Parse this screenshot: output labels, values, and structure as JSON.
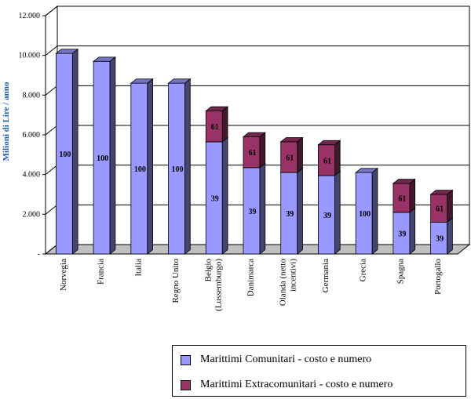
{
  "chart_data": {
    "type": "bar",
    "stacked": true,
    "three_d": true,
    "ylabel": "Milioni di Lire / anno",
    "ylim": [
      0,
      12000
    ],
    "yticks": [
      {
        "value": 0,
        "label": "-"
      },
      {
        "value": 2000,
        "label": "2.000"
      },
      {
        "value": 4000,
        "label": "4.000"
      },
      {
        "value": 6000,
        "label": "6.000"
      },
      {
        "value": 8000,
        "label": "8.000"
      },
      {
        "value": 10000,
        "label": "10.000"
      },
      {
        "value": 12000,
        "label": "12.000"
      }
    ],
    "categories": [
      [
        "Norvegia"
      ],
      [
        "Francia"
      ],
      [
        "Italia"
      ],
      [
        "Regno Unito"
      ],
      [
        "Belgio",
        "(Lussemburgo)"
      ],
      [
        "Danimarca"
      ],
      [
        "Olanda (netto",
        "incentivi)"
      ],
      [
        "Germania"
      ],
      [
        "Grecia"
      ],
      [
        "Spagna"
      ],
      [
        "Portogallo"
      ]
    ],
    "series": [
      {
        "name": "Marittimi Comunitari - costo e numero",
        "color": "#9999ff",
        "values": [
          10100,
          9700,
          8600,
          8600,
          5650,
          4350,
          4100,
          3950,
          4100,
          2100,
          1600
        ],
        "labels": [
          "100",
          "100",
          "100",
          "100",
          "39",
          "39",
          "39",
          "39",
          "100",
          "39",
          "39"
        ]
      },
      {
        "name": "Marittimi Extracomunitari - costo e numero",
        "color": "#993366",
        "values": [
          0,
          0,
          0,
          0,
          1550,
          1550,
          1550,
          1550,
          0,
          1450,
          1400
        ],
        "labels": [
          "",
          "",
          "",
          "",
          "61",
          "61",
          "61",
          "61",
          "",
          "61",
          "61"
        ]
      }
    ],
    "grid": true,
    "legend": "bottom-right"
  }
}
